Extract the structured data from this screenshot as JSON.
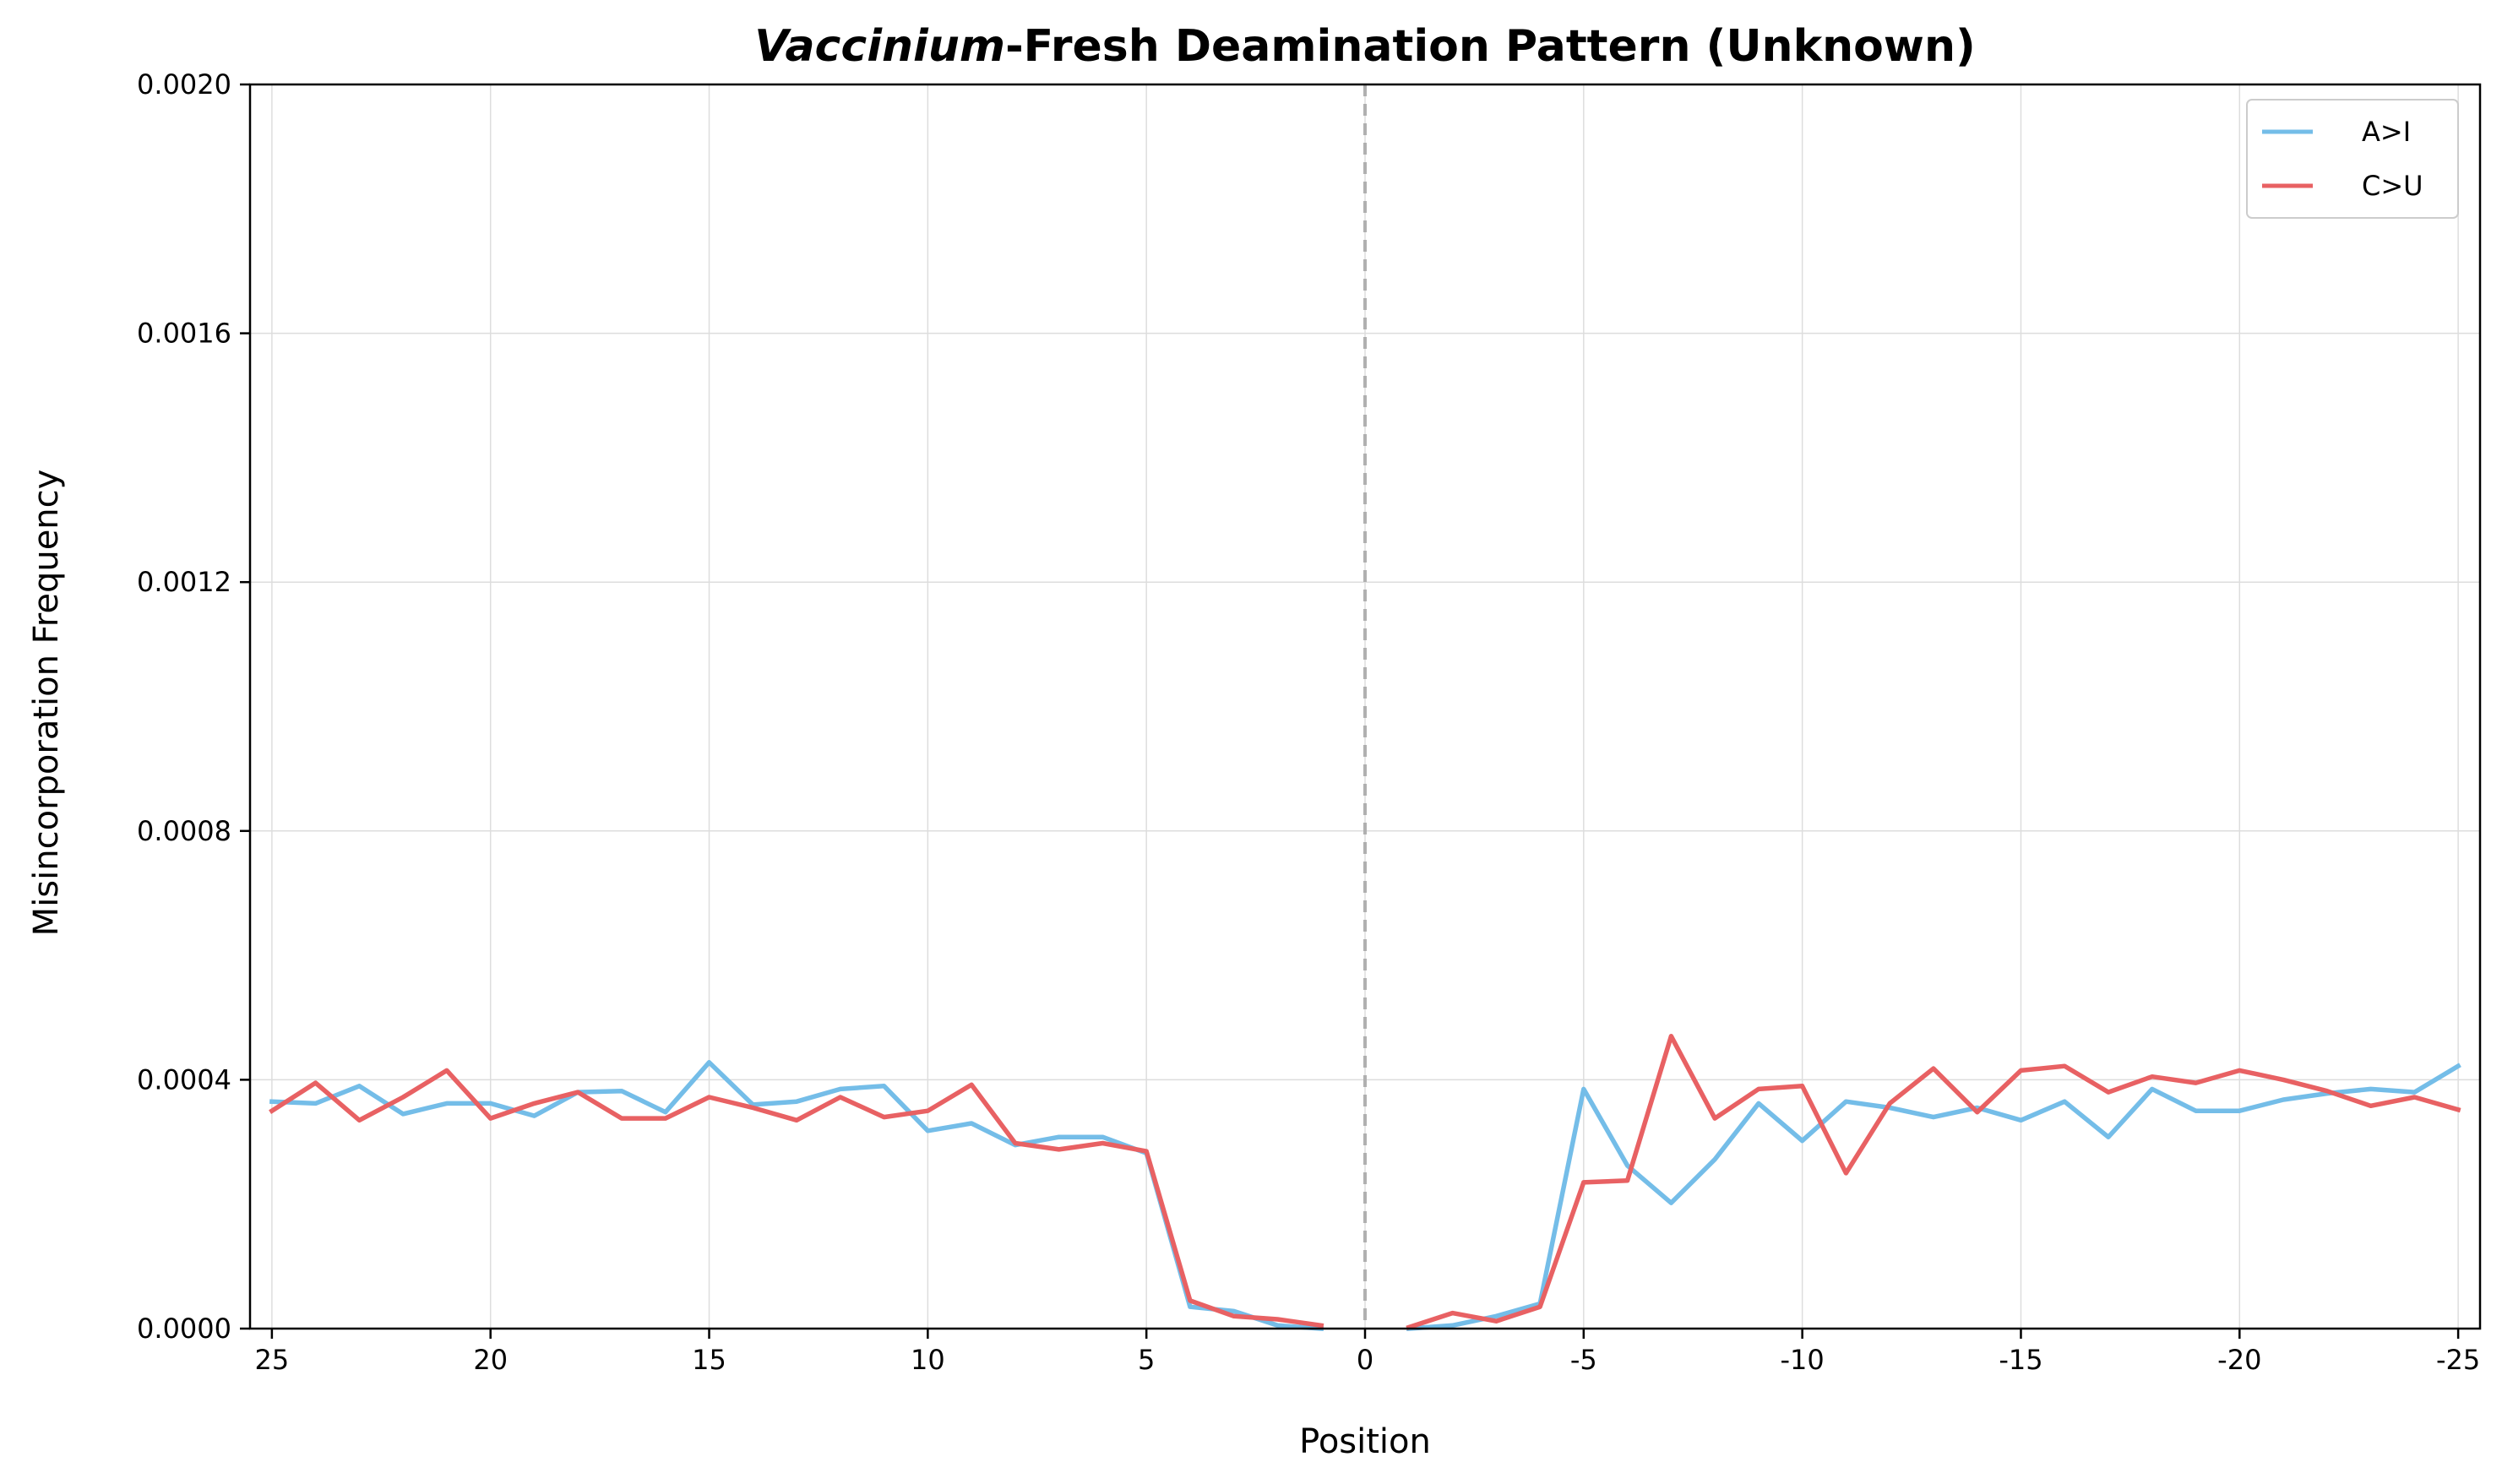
{
  "chart_data": {
    "type": "line",
    "title_italic": "Vaccinium",
    "title_rest": "-Fresh Deamination Pattern (Unknown)",
    "xlabel": "Position",
    "ylabel": "Misincorporation Frequency",
    "xlim": [
      25.5,
      -25.5
    ],
    "ylim": [
      0,
      0.002
    ],
    "xticks": [
      25,
      20,
      15,
      10,
      5,
      0,
      -5,
      -10,
      -15,
      -20,
      -25
    ],
    "xtick_labels": [
      "25",
      "20",
      "15",
      "10",
      "5",
      "0",
      "-5",
      "-10",
      "-15",
      "-20",
      "-25"
    ],
    "yticks": [
      0,
      0.0004,
      0.0008,
      0.0012,
      0.0016,
      0.002
    ],
    "ytick_labels": [
      "0.0000",
      "0.0004",
      "0.0008",
      "0.0012",
      "0.0016",
      "0.0020"
    ],
    "grid": true,
    "reference_line_x": 0,
    "legend_position": "top-right",
    "series": [
      {
        "name": "A>I",
        "color": "#74bde8",
        "segments": [
          {
            "x": [
              25,
              24,
              23,
              22,
              21,
              20,
              19,
              18,
              17,
              16,
              15,
              14,
              13,
              12,
              11,
              10,
              9,
              8,
              7,
              6,
              5,
              4,
              3,
              2,
              1
            ],
            "y": [
              0.000365,
              0.000362,
              0.00039,
              0.000345,
              0.000362,
              0.000362,
              0.000342,
              0.00038,
              0.000382,
              0.000348,
              0.000428,
              0.00036,
              0.000365,
              0.000385,
              0.00039,
              0.000318,
              0.00033,
              0.000295,
              0.000308,
              0.000308,
              0.000282,
              3.5e-05,
              2.8e-05,
              5e-06,
              0.0
            ]
          },
          {
            "x": [
              -1,
              -2,
              -3,
              -4,
              -5,
              -6,
              -7,
              -8,
              -9,
              -10,
              -11,
              -12,
              -13,
              -14,
              -15,
              -16,
              -17,
              -18,
              -19,
              -20,
              -21,
              -22,
              -23,
              -24,
              -25
            ],
            "y": [
              0.0,
              5e-06,
              2e-05,
              4e-05,
              0.000385,
              0.000262,
              0.000202,
              0.000272,
              0.000362,
              0.000302,
              0.000365,
              0.000355,
              0.00034,
              0.000355,
              0.000335,
              0.000365,
              0.000308,
              0.000385,
              0.00035,
              0.00035,
              0.000368,
              0.000378,
              0.000385,
              0.00038,
              0.000422
            ]
          }
        ]
      },
      {
        "name": "C>U",
        "color": "#e86163",
        "segments": [
          {
            "x": [
              25,
              24,
              23,
              22,
              21,
              20,
              19,
              18,
              17,
              16,
              15,
              14,
              13,
              12,
              11,
              10,
              9,
              8,
              7,
              6,
              5,
              4,
              3,
              2,
              1
            ],
            "y": [
              0.00035,
              0.000395,
              0.000335,
              0.000372,
              0.000415,
              0.000338,
              0.000362,
              0.00038,
              0.000338,
              0.000338,
              0.000372,
              0.000355,
              0.000335,
              0.000372,
              0.00034,
              0.00035,
              0.000392,
              0.000298,
              0.000288,
              0.000298,
              0.000285,
              4.5e-05,
              2e-05,
              1.5e-05,
              5e-06
            ]
          },
          {
            "x": [
              -1,
              -2,
              -3,
              -4,
              -5,
              -6,
              -7,
              -8,
              -9,
              -10,
              -11,
              -12,
              -13,
              -14,
              -15,
              -16,
              -17,
              -18,
              -19,
              -20,
              -21,
              -22,
              -23,
              -24,
              -25
            ],
            "y": [
              2e-06,
              2.5e-05,
              1.2e-05,
              3.5e-05,
              0.000235,
              0.000238,
              0.00047,
              0.000338,
              0.000385,
              0.00039,
              0.00025,
              0.000362,
              0.000418,
              0.000348,
              0.000415,
              0.000422,
              0.00038,
              0.000405,
              0.000395,
              0.000415,
              0.0004,
              0.000382,
              0.000358,
              0.000372,
              0.000352
            ]
          }
        ]
      }
    ]
  }
}
